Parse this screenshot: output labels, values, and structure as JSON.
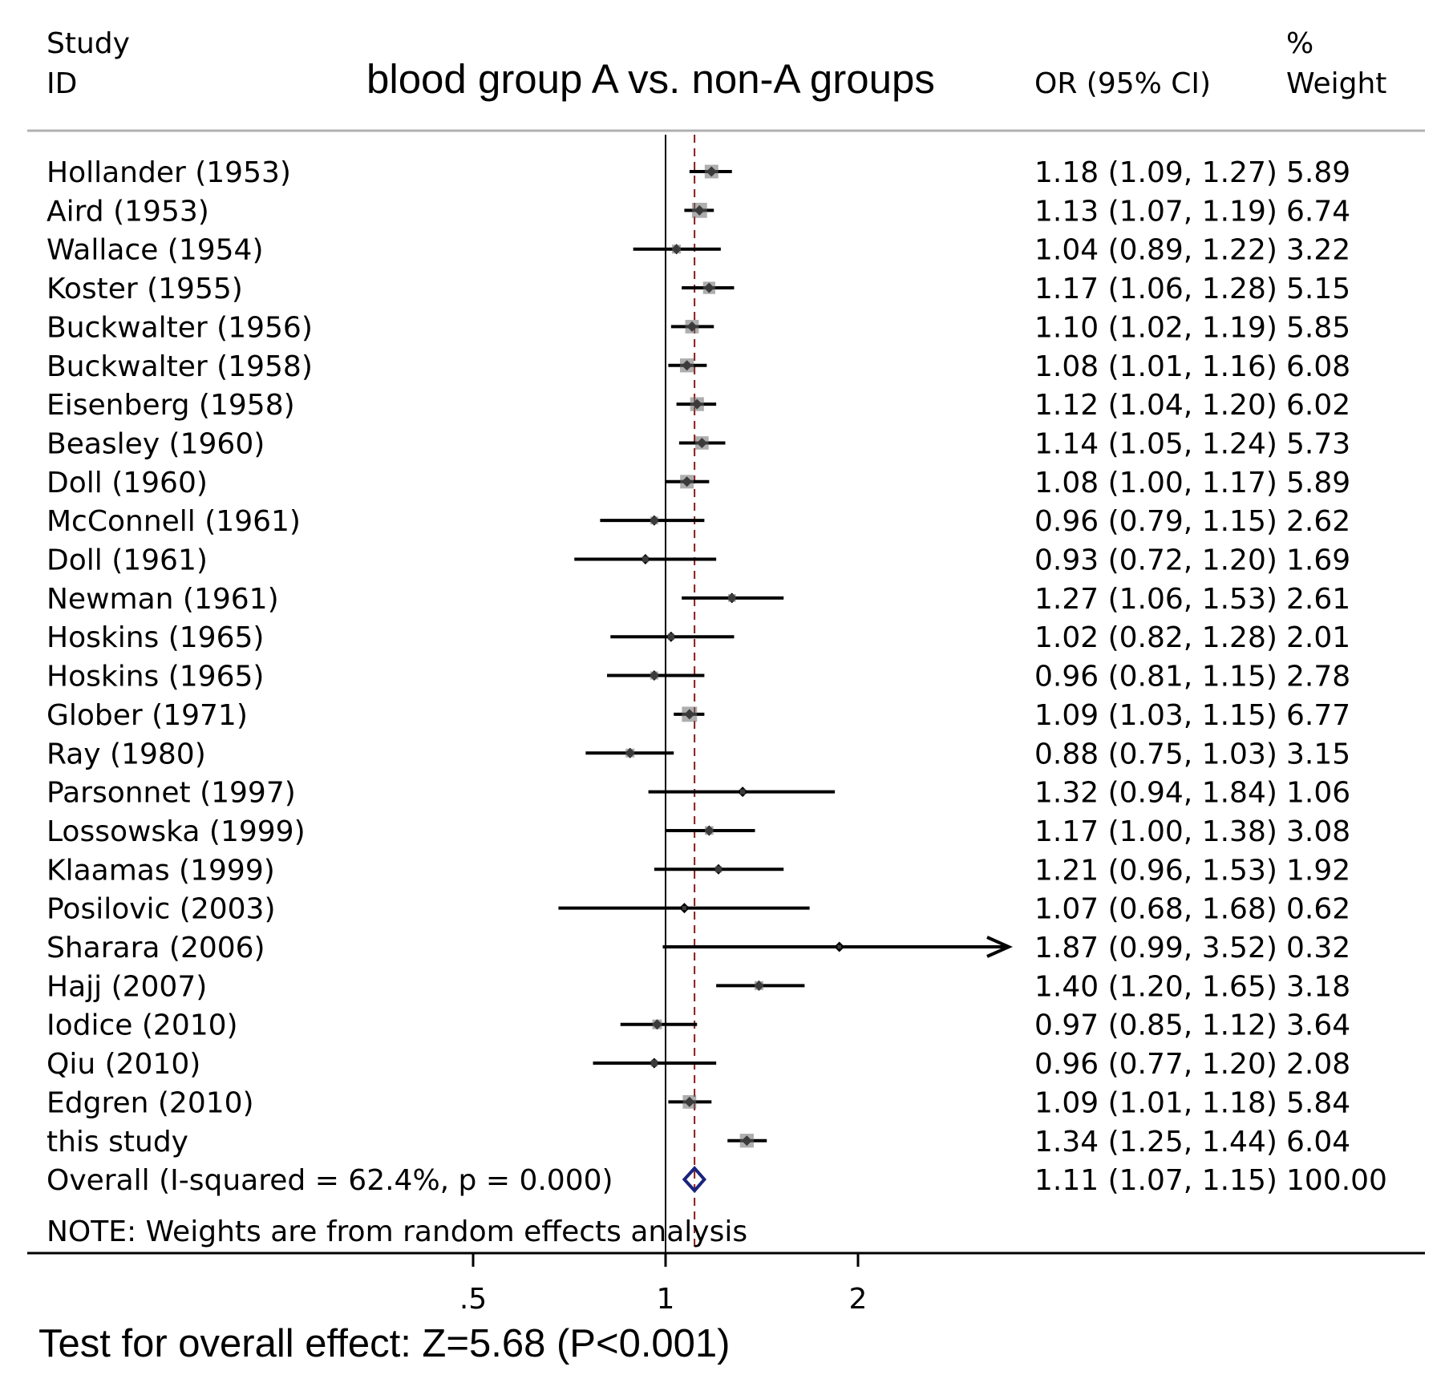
{
  "chart_data": {
    "type": "forest",
    "title": "blood group A vs. non-A groups",
    "headers": {
      "study_line1": "Study",
      "study_line2": "ID",
      "or": "OR (95% CI)",
      "weight_line1": "%",
      "weight_line2": "Weight"
    },
    "x_scale": "log",
    "x_ticks": [
      {
        "value": 0.5,
        "label": ".5"
      },
      {
        "value": 1,
        "label": "1"
      },
      {
        "value": 2,
        "label": "2"
      }
    ],
    "null_value": 1,
    "pooled_estimate": 1.11,
    "studies": [
      {
        "label": "Hollander  (1953)",
        "or": 1.18,
        "lo": 1.09,
        "hi": 1.27,
        "ci_text": "1.18 (1.09, 1.27)",
        "weight": "5.89"
      },
      {
        "label": "Aird (1953)",
        "or": 1.13,
        "lo": 1.07,
        "hi": 1.19,
        "ci_text": "1.13 (1.07, 1.19)",
        "weight": "6.74"
      },
      {
        "label": "Wallace (1954)",
        "or": 1.04,
        "lo": 0.89,
        "hi": 1.22,
        "ci_text": "1.04 (0.89, 1.22)",
        "weight": "3.22"
      },
      {
        "label": "Koster (1955)",
        "or": 1.17,
        "lo": 1.06,
        "hi": 1.28,
        "ci_text": "1.17 (1.06, 1.28)",
        "weight": "5.15"
      },
      {
        "label": "Buckwalter (1956)",
        "or": 1.1,
        "lo": 1.02,
        "hi": 1.19,
        "ci_text": "1.10 (1.02, 1.19)",
        "weight": "5.85"
      },
      {
        "label": "Buckwalter (1958)",
        "or": 1.08,
        "lo": 1.01,
        "hi": 1.16,
        "ci_text": "1.08 (1.01, 1.16)",
        "weight": "6.08"
      },
      {
        "label": "Eisenberg (1958)",
        "or": 1.12,
        "lo": 1.04,
        "hi": 1.2,
        "ci_text": "1.12 (1.04, 1.20)",
        "weight": "6.02"
      },
      {
        "label": "Beasley  (1960)",
        "or": 1.14,
        "lo": 1.05,
        "hi": 1.24,
        "ci_text": "1.14 (1.05, 1.24)",
        "weight": "5.73"
      },
      {
        "label": "Doll  (1960)",
        "or": 1.08,
        "lo": 1.0,
        "hi": 1.17,
        "ci_text": "1.08 (1.00, 1.17)",
        "weight": "5.89"
      },
      {
        "label": "McConnell  (1961)",
        "or": 0.96,
        "lo": 0.79,
        "hi": 1.15,
        "ci_text": "0.96 (0.79, 1.15)",
        "weight": "2.62"
      },
      {
        "label": "Doll  (1961)",
        "or": 0.93,
        "lo": 0.72,
        "hi": 1.2,
        "ci_text": "0.93 (0.72, 1.20)",
        "weight": "1.69"
      },
      {
        "label": "Newman  (1961)",
        "or": 1.27,
        "lo": 1.06,
        "hi": 1.53,
        "ci_text": "1.27 (1.06, 1.53)",
        "weight": "2.61"
      },
      {
        "label": "Hoskins (1965)",
        "or": 1.02,
        "lo": 0.82,
        "hi": 1.28,
        "ci_text": "1.02 (0.82, 1.28)",
        "weight": "2.01"
      },
      {
        "label": "Hoskins  (1965)",
        "or": 0.96,
        "lo": 0.81,
        "hi": 1.15,
        "ci_text": "0.96 (0.81, 1.15)",
        "weight": "2.78"
      },
      {
        "label": "Glober (1971)",
        "or": 1.09,
        "lo": 1.03,
        "hi": 1.15,
        "ci_text": "1.09 (1.03, 1.15)",
        "weight": "6.77"
      },
      {
        "label": "Ray  (1980)",
        "or": 0.88,
        "lo": 0.75,
        "hi": 1.03,
        "ci_text": "0.88 (0.75, 1.03)",
        "weight": "3.15"
      },
      {
        "label": "Parsonnet  (1997)",
        "or": 1.32,
        "lo": 0.94,
        "hi": 1.84,
        "ci_text": "1.32 (0.94, 1.84)",
        "weight": "1.06"
      },
      {
        "label": "Lossowska (1999)",
        "or": 1.17,
        "lo": 1.0,
        "hi": 1.38,
        "ci_text": "1.17 (1.00, 1.38)",
        "weight": "3.08"
      },
      {
        "label": "Klaamas  (1999)",
        "or": 1.21,
        "lo": 0.96,
        "hi": 1.53,
        "ci_text": "1.21 (0.96, 1.53)",
        "weight": "1.92"
      },
      {
        "label": "Posilovic (2003)",
        "or": 1.07,
        "lo": 0.68,
        "hi": 1.68,
        "ci_text": "1.07 (0.68, 1.68)",
        "weight": "0.62"
      },
      {
        "label": "Sharara  (2006)",
        "or": 1.87,
        "lo": 0.99,
        "hi": 3.52,
        "ci_text": "1.87 (0.99, 3.52)",
        "weight": "0.32",
        "truncated": true
      },
      {
        "label": "Hajj (2007)",
        "or": 1.4,
        "lo": 1.2,
        "hi": 1.65,
        "ci_text": "1.40 (1.20, 1.65)",
        "weight": "3.18"
      },
      {
        "label": "Iodice  (2010)",
        "or": 0.97,
        "lo": 0.85,
        "hi": 1.12,
        "ci_text": "0.97 (0.85, 1.12)",
        "weight": "3.64"
      },
      {
        "label": "Qiu (2010)",
        "or": 0.96,
        "lo": 0.77,
        "hi": 1.2,
        "ci_text": "0.96 (0.77, 1.20)",
        "weight": "2.08"
      },
      {
        "label": "Edgren  (2010)",
        "or": 1.09,
        "lo": 1.01,
        "hi": 1.18,
        "ci_text": "1.09 (1.01, 1.18)",
        "weight": "5.84"
      },
      {
        "label": "this study",
        "or": 1.34,
        "lo": 1.25,
        "hi": 1.44,
        "ci_text": "1.34 (1.25, 1.44)",
        "weight": "6.04"
      }
    ],
    "overall": {
      "label": "Overall  (I-squared = 62.4%, p = 0.000)",
      "or": 1.11,
      "lo": 1.07,
      "hi": 1.15,
      "ci_text": "1.11 (1.07, 1.15)",
      "weight": "100.00"
    },
    "note": "NOTE: Weights are from random effects analysis",
    "overall_effect_text": "Test for overall effect: Z=5.68 (P<0.001)",
    "colors": {
      "ink": "#000000",
      "pooled_line": "#8b1a1a",
      "diamond": "#1a237e",
      "header_rule": "#b0b0b0"
    }
  }
}
